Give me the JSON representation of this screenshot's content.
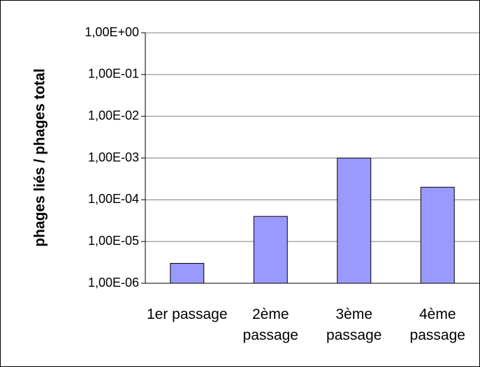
{
  "chart_data": {
    "type": "bar",
    "y_label": "phages liés / phages total",
    "categories": [
      "1er passage",
      "2ème passage",
      "3ème passage",
      "4ème passage"
    ],
    "values": [
      3e-06,
      4e-05,
      0.001,
      0.0002
    ],
    "color": "#9999ff",
    "log_y": true,
    "ylim": [
      1e-06,
      1
    ],
    "yticks": [
      {
        "value": 1,
        "label": "1,00E+00"
      },
      {
        "value": 0.1,
        "label": "1,00E-01"
      },
      {
        "value": 0.01,
        "label": "1,00E-02"
      },
      {
        "value": 0.001,
        "label": "1,00E-03"
      },
      {
        "value": 0.0001,
        "label": "1,00E-04"
      },
      {
        "value": 1e-05,
        "label": "1,00E-05"
      },
      {
        "value": 1e-06,
        "label": "1,00E-06"
      }
    ],
    "grid": true
  }
}
